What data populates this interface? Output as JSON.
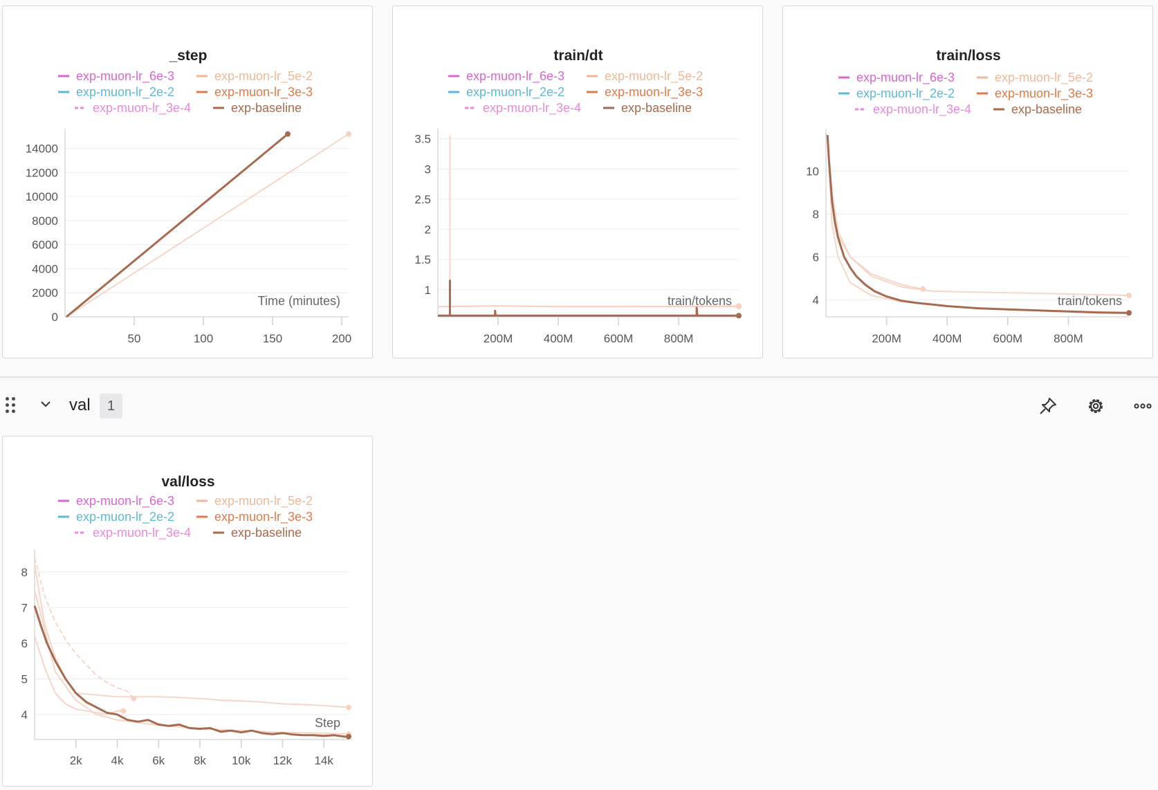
{
  "colors": {
    "lr_6e-3": "#d966d0",
    "lr_5e-2": "#f0b898",
    "lr_2e-2": "#5db8d8",
    "lr_3e-3": "#e07a48",
    "lr_3e-4": "#e88ad8",
    "baseline": "#a86a4e",
    "faint": "#f5d2c2"
  },
  "legend": [
    {
      "label": "exp-muon-lr_6e-3",
      "color": "#d966d0",
      "dashed": false
    },
    {
      "label": "exp-muon-lr_5e-2",
      "color": "#f0b898",
      "dashed": false
    },
    {
      "label": "exp-muon-lr_2e-2",
      "color": "#5db8d8",
      "dashed": false
    },
    {
      "label": "exp-muon-lr_3e-3",
      "color": "#e07a48",
      "dashed": false
    },
    {
      "label": "exp-muon-lr_3e-4",
      "color": "#e88ad8",
      "dashed": true
    },
    {
      "label": "exp-baseline",
      "color": "#a86a4e",
      "dashed": false
    }
  ],
  "section": {
    "title": "val",
    "count": "1",
    "icons": [
      "pin-icon",
      "gear-icon",
      "more-icon"
    ]
  },
  "chart_data": [
    {
      "id": "step",
      "type": "line",
      "title": "_step",
      "xlabel": "Time (minutes)",
      "xlim": [
        0,
        205
      ],
      "ylim": [
        0,
        15300
      ],
      "xticks": [
        50,
        100,
        150,
        200
      ],
      "xtick_labels": [
        "50",
        "100",
        "150",
        "200"
      ],
      "yticks": [
        0,
        2000,
        4000,
        6000,
        8000,
        10000,
        12000,
        14000
      ],
      "ytick_labels": [
        "0",
        "2000",
        "4000",
        "6000",
        "8000",
        "10000",
        "12000",
        "14000"
      ],
      "series": [
        {
          "name": "exp-muon-lr_5e-2",
          "faint": true,
          "x": [
            1,
            205
          ],
          "y": [
            0,
            15200
          ]
        },
        {
          "name": "exp-baseline",
          "x": [
            1,
            161
          ],
          "y": [
            0,
            15200
          ]
        }
      ]
    },
    {
      "id": "dt",
      "type": "line",
      "title": "train/dt",
      "xlabel": "train/tokens",
      "xlim": [
        0,
        1000
      ],
      "ylim": [
        0.55,
        3.6
      ],
      "xticks": [
        200,
        400,
        600,
        800
      ],
      "xtick_labels": [
        "200M",
        "400M",
        "600M",
        "800M"
      ],
      "yticks": [
        1,
        1.5,
        2,
        2.5,
        3,
        3.5
      ],
      "ytick_labels": [
        "1",
        "1.5",
        "2",
        "2.5",
        "3",
        "3.5"
      ],
      "series": [
        {
          "name": "exp-muon-lr_6e-3",
          "faint": true,
          "x": [
            0,
            40,
            40,
            40,
            45,
            200,
            400,
            600,
            1000
          ],
          "y": [
            0.72,
            0.72,
            3.55,
            0.72,
            0.72,
            0.73,
            0.72,
            0.72,
            0.72
          ]
        },
        {
          "name": "exp-muon-lr_5e-2",
          "faint": true,
          "x": [
            0,
            200,
            400,
            600,
            1000
          ],
          "y": [
            0.72,
            0.73,
            0.72,
            0.72,
            0.73
          ]
        },
        {
          "name": "exp-baseline",
          "x": [
            0,
            40,
            40,
            40,
            190,
            190,
            192,
            860,
            860,
            862,
            1000
          ],
          "y": [
            0.57,
            0.57,
            1.15,
            0.57,
            0.57,
            0.65,
            0.57,
            0.57,
            0.7,
            0.57,
            0.57
          ]
        }
      ]
    },
    {
      "id": "loss",
      "type": "line",
      "title": "train/loss",
      "xlabel": "train/tokens",
      "xlim": [
        0,
        1000
      ],
      "ylim": [
        3.2,
        11.8
      ],
      "xticks": [
        200,
        400,
        600,
        800
      ],
      "xtick_labels": [
        "200M",
        "400M",
        "600M",
        "800M"
      ],
      "yticks": [
        4,
        6,
        8,
        10
      ],
      "ytick_labels": [
        "4",
        "6",
        "8",
        "10"
      ],
      "series": [
        {
          "name": "exp-muon-lr_5e-2",
          "faint": true,
          "x": [
            5,
            20,
            40,
            80,
            150,
            250,
            350,
            500,
            700,
            1000
          ],
          "y": [
            11.5,
            9.0,
            7.2,
            6.0,
            5.1,
            4.6,
            4.4,
            4.35,
            4.3,
            4.2
          ]
        },
        {
          "name": "exp-muon-lr_6e-3",
          "faint": true,
          "x": [
            5,
            20,
            40,
            80,
            150,
            250,
            320
          ],
          "y": [
            11.5,
            8.5,
            7.0,
            6.0,
            5.2,
            4.7,
            4.5
          ]
        },
        {
          "name": "exp-muon-lr_2e-2",
          "faint": true,
          "x": [
            5,
            20,
            40,
            80,
            150,
            250,
            400,
            600,
            1000
          ],
          "y": [
            11.5,
            7.5,
            6.0,
            4.8,
            4.2,
            3.9,
            3.7,
            3.55,
            3.4
          ]
        },
        {
          "name": "exp-baseline",
          "x": [
            5,
            10,
            20,
            30,
            40,
            60,
            80,
            100,
            130,
            160,
            200,
            250,
            300,
            350,
            400,
            500,
            600,
            700,
            800,
            900,
            1000
          ],
          "y": [
            11.7,
            10.5,
            8.6,
            7.6,
            6.9,
            6.0,
            5.5,
            5.1,
            4.7,
            4.4,
            4.15,
            3.95,
            3.85,
            3.78,
            3.7,
            3.6,
            3.55,
            3.5,
            3.45,
            3.4,
            3.38
          ]
        }
      ]
    },
    {
      "id": "val",
      "type": "line",
      "title": "val/loss",
      "xlabel": "Step",
      "xlim": [
        0,
        15200
      ],
      "ylim": [
        3.3,
        8.5
      ],
      "xticks": [
        2000,
        4000,
        6000,
        8000,
        10000,
        12000,
        14000
      ],
      "xtick_labels": [
        "2k",
        "4k",
        "6k",
        "8k",
        "10k",
        "12k",
        "14k"
      ],
      "yticks": [
        4,
        5,
        6,
        7,
        8
      ],
      "ytick_labels": [
        "4",
        "5",
        "6",
        "7",
        "8"
      ],
      "series": [
        {
          "name": "exp-muon-lr_3e-4",
          "faint": true,
          "dashed": true,
          "x": [
            0,
            500,
            1000,
            1500,
            2000,
            2500,
            3000,
            3500,
            4000,
            4500,
            4800
          ],
          "y": [
            8.4,
            7.3,
            6.6,
            6.1,
            5.7,
            5.4,
            5.1,
            4.9,
            4.75,
            4.65,
            4.45
          ]
        },
        {
          "name": "exp-muon-lr_5e-2",
          "faint": true,
          "x": [
            0,
            500,
            1000,
            1500,
            2000,
            3000,
            4000,
            5000,
            6000,
            7000,
            8000,
            9000,
            10000,
            11000,
            12000,
            13000,
            14000,
            15200
          ],
          "y": [
            8.2,
            6.5,
            5.6,
            5.0,
            4.6,
            4.55,
            4.5,
            4.5,
            4.5,
            4.48,
            4.45,
            4.4,
            4.38,
            4.35,
            4.3,
            4.28,
            4.25,
            4.2
          ]
        },
        {
          "name": "exp-muon-lr_2e-2",
          "faint": true,
          "x": [
            0,
            500,
            1000,
            1500,
            2000,
            2500,
            3000,
            3500,
            4000,
            4300
          ],
          "y": [
            6.2,
            5.3,
            4.6,
            4.3,
            4.15,
            4.1,
            4.05,
            4.0,
            4.1,
            4.1
          ]
        },
        {
          "name": "exp-muon-lr_6e-3",
          "faint": true,
          "x": [
            0,
            1000,
            2000,
            3000,
            4000,
            6000,
            8000,
            10000,
            12000,
            14000,
            15200
          ],
          "y": [
            7.5,
            5.2,
            4.4,
            4.0,
            3.85,
            3.7,
            3.6,
            3.55,
            3.5,
            3.48,
            3.45
          ]
        },
        {
          "name": "exp-baseline",
          "x": [
            0,
            300,
            600,
            1000,
            1500,
            2000,
            2500,
            3000,
            3500,
            4000,
            4500,
            5000,
            5500,
            6000,
            6500,
            7000,
            7500,
            8000,
            8500,
            9000,
            9500,
            10000,
            10500,
            11000,
            11500,
            12000,
            12500,
            13000,
            13500,
            14000,
            14500,
            15000,
            15200
          ],
          "y": [
            7.05,
            6.5,
            6.0,
            5.5,
            5.0,
            4.6,
            4.35,
            4.2,
            4.05,
            4.0,
            3.85,
            3.8,
            3.85,
            3.72,
            3.68,
            3.72,
            3.62,
            3.6,
            3.62,
            3.52,
            3.55,
            3.5,
            3.55,
            3.48,
            3.45,
            3.48,
            3.44,
            3.42,
            3.42,
            3.4,
            3.42,
            3.38,
            3.38
          ]
        }
      ]
    }
  ]
}
